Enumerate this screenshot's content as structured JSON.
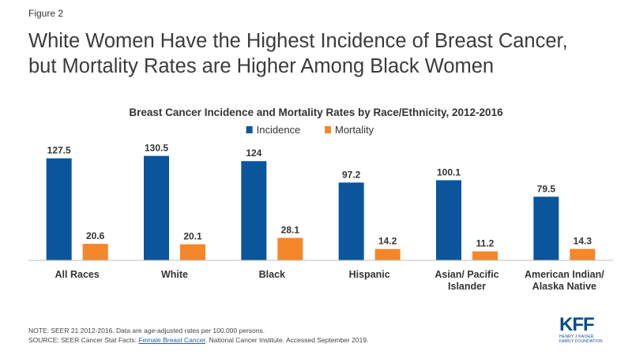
{
  "figure_label": "Figure 2",
  "headline": [
    "White Women Have the Highest Incidence of Breast Cancer,",
    "but Mortality Rates are Higher Among Black Women"
  ],
  "chart_data": {
    "type": "bar",
    "title": "Breast Cancer Incidence and Mortality Rates by Race/Ethnicity, 2012-2016",
    "categories": [
      [
        "All Races"
      ],
      [
        "White"
      ],
      [
        "Black"
      ],
      [
        "Hispanic"
      ],
      [
        "Asian/ Pacific",
        "Islander"
      ],
      [
        "American Indian/",
        "Alaska Native"
      ]
    ],
    "series": [
      {
        "name": "Incidence",
        "color": "#0a559c",
        "values": [
          127.5,
          130.5,
          124,
          97.2,
          100.1,
          79.5
        ]
      },
      {
        "name": "Mortality",
        "color": "#f3872a",
        "values": [
          20.6,
          20.1,
          28.1,
          14.2,
          11.2,
          14.3
        ]
      }
    ],
    "ylim": [
      0,
      140
    ],
    "legend_position": "top-center",
    "grid": false,
    "xlabel": "",
    "ylabel": ""
  },
  "footer": {
    "note": "NOTE: SEER 21 2012-2016.  Data are age-adjusted  rates per 100,000 persons.",
    "source_prefix": "SOURCE: SEER Cancer Stat Facts: ",
    "source_link": "Female Breast Cancer",
    "source_suffix": ". National Cancer Institute. Accessed September 2019."
  },
  "logo": {
    "mark": "KFF",
    "line1": "HENRY J KAISER",
    "line2": "FAMILY FOUNDATION"
  }
}
